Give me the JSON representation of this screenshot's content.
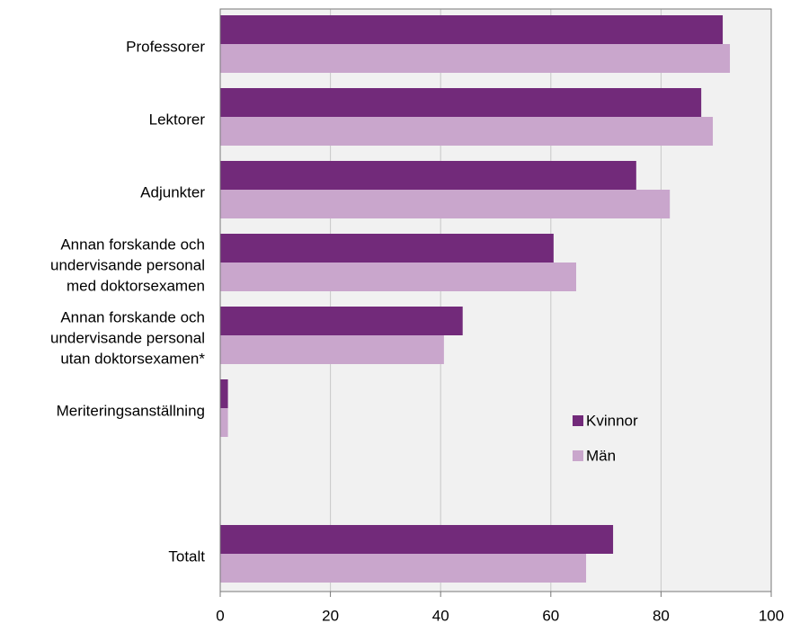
{
  "chart_data": {
    "type": "barh",
    "categories": [
      "Professorer",
      "Lektorer",
      "Adjunkter",
      "Annan forskande och\nundervisande personal\nmed doktorsexamen",
      "Annan forskande och\nundervisande personal\nutan doktorsexamen*",
      "Meriteringsanställning",
      null,
      "Totalt"
    ],
    "series": [
      {
        "name": "Kvinnor",
        "color": "#722a7a",
        "values": [
          91.2,
          87.3,
          75.5,
          60.5,
          44,
          1.4,
          null,
          71.3
        ]
      },
      {
        "name": "Män",
        "color": "#c9a6cc",
        "values": [
          92.5,
          89.4,
          81.6,
          64.6,
          40.6,
          1.4,
          null,
          66.4
        ]
      }
    ],
    "xlim": [
      0,
      100
    ],
    "xticks": [
      0,
      20,
      40,
      60,
      80,
      100
    ],
    "grid": true
  }
}
